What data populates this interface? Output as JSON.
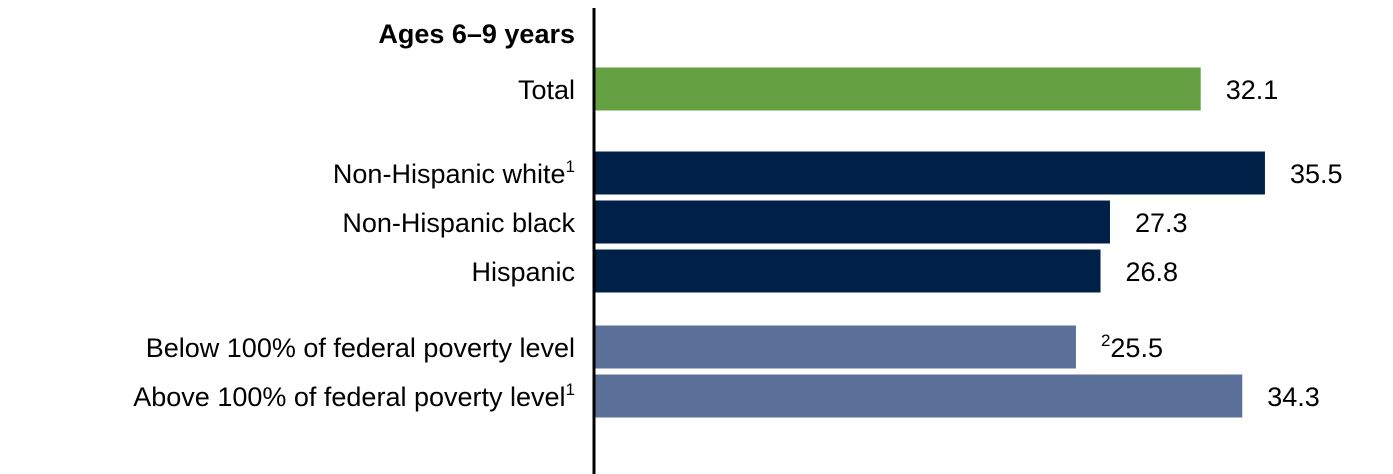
{
  "chart_data": {
    "type": "bar",
    "orientation": "horizontal",
    "group_heading": "Ages 6–9 years",
    "categories": [
      {
        "label": "Total",
        "sup": "",
        "value": 32.1,
        "value_prefix": "",
        "color": "#65A042"
      },
      {
        "label": "Non-Hispanic white",
        "sup": "1",
        "value": 35.5,
        "value_prefix": "",
        "color": "#002147"
      },
      {
        "label": "Non-Hispanic black",
        "sup": "",
        "value": 27.3,
        "value_prefix": "",
        "color": "#002147"
      },
      {
        "label": "Hispanic",
        "sup": "",
        "value": 26.8,
        "value_prefix": "",
        "color": "#002147"
      },
      {
        "label": "Below 100% of federal poverty level",
        "sup": "",
        "value": 25.5,
        "value_prefix": "2",
        "color": "#5B7099"
      },
      {
        "label": "Above 100% of federal poverty level",
        "sup": "1",
        "value": 34.3,
        "value_prefix": "",
        "color": "#5B7099"
      }
    ],
    "xlim": [
      0,
      37.5
    ],
    "grid": false,
    "legend": "none"
  }
}
